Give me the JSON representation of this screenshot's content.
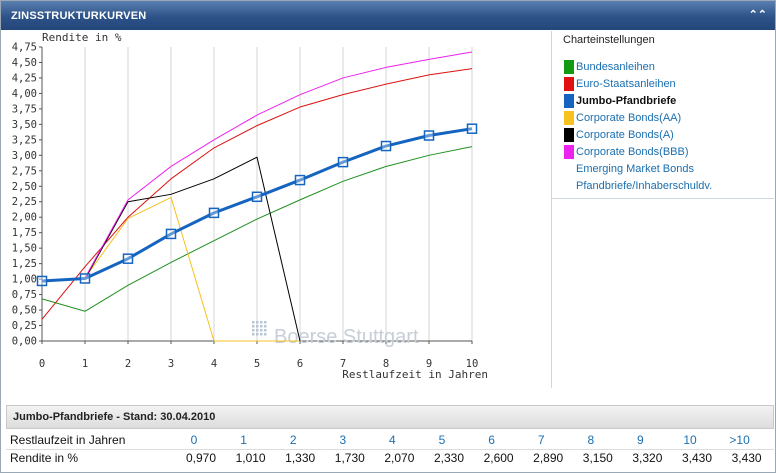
{
  "panel": {
    "title": "ZINSSTRUKTURKURVEN",
    "collapse_icon": "double-chevron-up-icon"
  },
  "chart_data": {
    "type": "line",
    "ylabel": "Rendite in %",
    "xlabel": "Restlaufzeit in Jahren",
    "xlim": [
      0,
      10
    ],
    "ylim": [
      0,
      4.75
    ],
    "x_ticks": [
      "0",
      "1",
      "2",
      "3",
      "4",
      "5",
      "6",
      "7",
      "8",
      "9",
      "10"
    ],
    "y_ticks": [
      "4,75",
      "4,50",
      "4,25",
      "4,00",
      "3,75",
      "3,50",
      "3,25",
      "3,00",
      "2,75",
      "2,50",
      "2,25",
      "2,00",
      "1,75",
      "1,50",
      "1,25",
      "1,00",
      "0,75",
      "0,50",
      "0,25",
      "0,00"
    ],
    "watermark": "Boerse Stuttgart",
    "grid": "vertical",
    "series": [
      {
        "name": "Bundesanleihen",
        "color": "#1f8f1f",
        "width": 1,
        "x": [
          0,
          1,
          2,
          3,
          4,
          5,
          6,
          7,
          8,
          9,
          10
        ],
        "y": [
          0.68,
          0.48,
          0.9,
          1.27,
          1.62,
          1.97,
          2.28,
          2.58,
          2.82,
          3.0,
          3.14
        ]
      },
      {
        "name": "Euro-Staatsanleihen",
        "color": "#dd1111",
        "width": 1,
        "x": [
          0,
          1,
          2,
          3,
          4,
          5,
          6,
          7,
          8,
          9,
          10
        ],
        "y": [
          0.35,
          1.2,
          2.0,
          2.62,
          3.12,
          3.48,
          3.78,
          3.98,
          4.15,
          4.3,
          4.4
        ]
      },
      {
        "name": "Corporate Bonds(AA)",
        "color": "#f5c020",
        "width": 1,
        "x": [
          0,
          1,
          2,
          3,
          4,
          5,
          6
        ],
        "y": [
          0.97,
          1.02,
          1.98,
          2.32,
          0.0,
          0.0,
          0.0
        ]
      },
      {
        "name": "Corporate Bonds(A)",
        "color": "#000000",
        "width": 1,
        "x": [
          0,
          1,
          2,
          3,
          4,
          5,
          6
        ],
        "y": [
          0.97,
          1.0,
          2.25,
          2.37,
          2.62,
          2.97,
          0.0
        ]
      },
      {
        "name": "Corporate Bonds(BBB)",
        "color": "#ee22ee",
        "width": 1,
        "x": [
          0,
          1,
          2,
          3,
          4,
          5,
          6,
          7,
          8,
          9,
          10
        ],
        "y": [
          0.97,
          1.02,
          2.28,
          2.82,
          3.25,
          3.65,
          3.98,
          4.25,
          4.42,
          4.55,
          4.67
        ]
      },
      {
        "name": "Jumbo-Pfandbriefe",
        "color": "#1565c0",
        "width": 3,
        "markers": true,
        "x": [
          0,
          1,
          2,
          3,
          4,
          5,
          6,
          7,
          8,
          9,
          10
        ],
        "y": [
          0.97,
          1.01,
          1.33,
          1.73,
          2.07,
          2.33,
          2.6,
          2.89,
          3.15,
          3.32,
          3.43
        ]
      }
    ]
  },
  "legend": {
    "header": "Charteinstellungen",
    "items": [
      {
        "label": "Bundesanleihen",
        "color": "#129b12",
        "selected": false
      },
      {
        "label": "Euro-Staatsanleihen",
        "color": "#e11111",
        "selected": false
      },
      {
        "label": "Jumbo-Pfandbriefe",
        "color": "#1565c0",
        "selected": true
      },
      {
        "label": "Corporate Bonds(AA)",
        "color": "#f7c21f",
        "selected": false
      },
      {
        "label": "Corporate Bonds(A)",
        "color": "#000000",
        "selected": false
      },
      {
        "label": "Corporate Bonds(BBB)",
        "color": "#ee22ee",
        "selected": false
      },
      {
        "label": "Emerging Market Bonds",
        "color": "",
        "selected": false
      },
      {
        "label": "Pfandbriefe/Inhaberschuldv.",
        "color": "",
        "selected": false
      }
    ]
  },
  "table": {
    "title": "Jumbo-Pfandbriefe - Stand: 30.04.2010",
    "row1_label": "Restlaufzeit in Jahren",
    "row2_label": "Rendite in %",
    "headers": [
      "0",
      "1",
      "2",
      "3",
      "4",
      "5",
      "6",
      "7",
      "8",
      "9",
      "10",
      ">10"
    ],
    "values": [
      "0,970",
      "1,010",
      "1,330",
      "1,730",
      "2,070",
      "2,330",
      "2,600",
      "2,890",
      "3,150",
      "3,320",
      "3,430",
      "3,430"
    ]
  }
}
